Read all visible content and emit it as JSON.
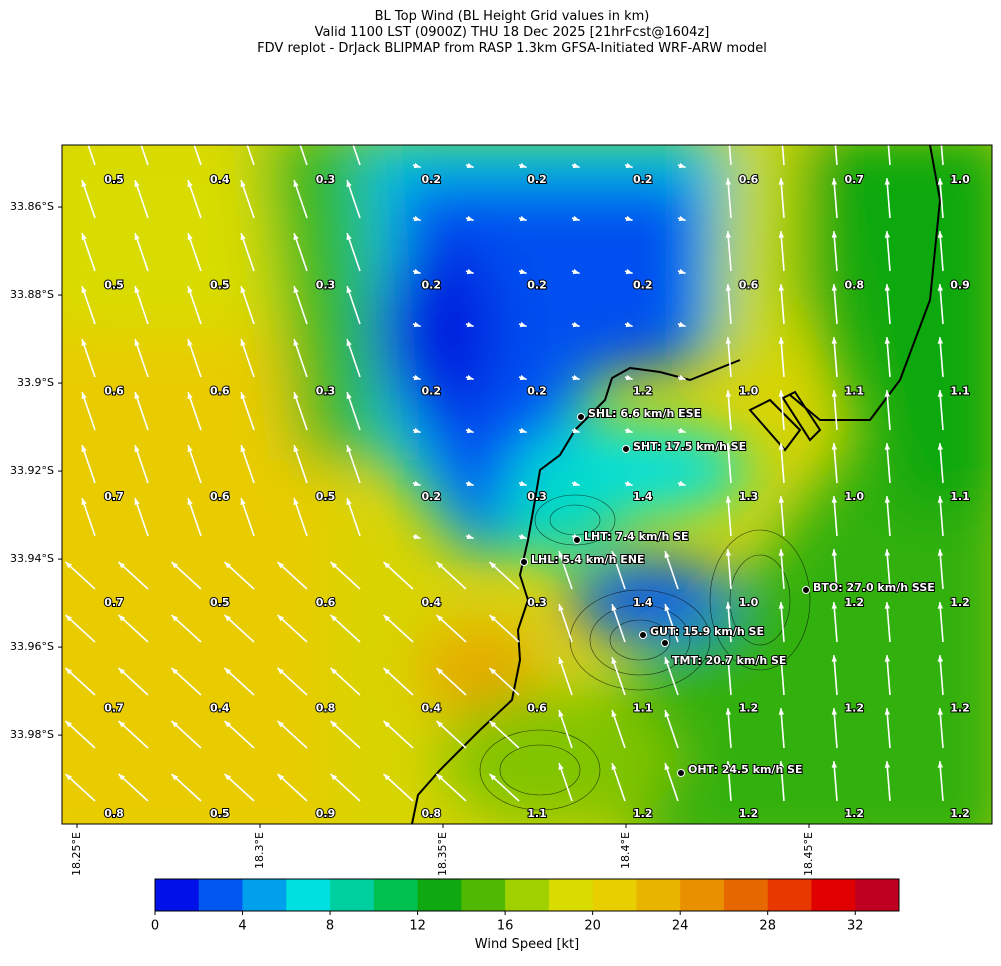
{
  "header": {
    "title": [
      "BL Top Wind (BL Height Grid values in km)",
      "Valid 1100 LST (0900Z) THU 18 Dec 2025 [21hrFcst@1604z]",
      "FDV replot - DrJack BLIPMAP from RASP 1.3km GFSA-Initiated WRF-ARW model"
    ]
  },
  "map": {
    "xlim": [
      18.2459,
      18.5
    ],
    "ylim": [
      -34.0002,
      -33.8459
    ],
    "lat_ticks": [
      {
        "value": -33.86,
        "label": "33.86°S"
      },
      {
        "value": -33.88,
        "label": "33.88°S"
      },
      {
        "value": -33.9,
        "label": "33.9°S"
      },
      {
        "value": -33.92,
        "label": "33.92°S"
      },
      {
        "value": -33.94,
        "label": "33.94°S"
      },
      {
        "value": -33.96,
        "label": "33.96°S"
      },
      {
        "value": -33.98,
        "label": "33.98°S"
      }
    ],
    "lon_ticks": [
      {
        "value": 18.25,
        "label": "18.25°E"
      },
      {
        "value": 18.3,
        "label": "18.3°E"
      },
      {
        "value": 18.35,
        "label": "18.35°E"
      },
      {
        "value": 18.4,
        "label": "18.4°E"
      },
      {
        "value": 18.45,
        "label": "18.45°E"
      }
    ],
    "grid_values": [
      [
        "0.5",
        "0.4",
        "0.3",
        "0.2",
        "0.2",
        "0.2",
        "0.6",
        "0.7",
        "1.0"
      ],
      [
        "0.5",
        "0.5",
        "0.3",
        "0.2",
        "0.2",
        "0.2",
        "0.6",
        "0.8",
        "0.9"
      ],
      [
        "0.6",
        "0.6",
        "0.3",
        "0.2",
        "0.2",
        "1.2",
        "1.0",
        "1.1",
        "1.1"
      ],
      [
        "0.7",
        "0.6",
        "0.5",
        "0.2",
        "0.3",
        "1.4",
        "1.3",
        "1.0",
        "1.1"
      ],
      [
        "0.7",
        "0.5",
        "0.6",
        "0.4",
        "0.3",
        "1.4",
        "1.0",
        "1.2",
        "1.2"
      ],
      [
        "0.7",
        "0.4",
        "0.8",
        "0.4",
        "0.6",
        "1.1",
        "1.2",
        "1.2",
        "1.2"
      ],
      [
        "0.8",
        "0.5",
        "0.9",
        "0.8",
        "1.1",
        "1.2",
        "1.2",
        "1.2",
        "1.2"
      ]
    ],
    "stations": [
      "SHL: 6.6 km/h ESE",
      "SHT: 17.5 km/h SE",
      "LHT: 7.4 km/h SE",
      "LHL: 5.4 km/h ENE",
      "BTO: 27.0 km/h SSE",
      "GUT: 15.9 km/h SE",
      "TMT: 20.7 km/h SE",
      "OHT: 24.5 km/h SE"
    ]
  },
  "colorbar": {
    "label": "Wind Speed [kt]",
    "range": [
      0,
      34
    ],
    "ticks": [
      0,
      4,
      8,
      12,
      16,
      20,
      24,
      28,
      32
    ],
    "colors": [
      "#0010e8",
      "#0058f0",
      "#00a0ec",
      "#00e0e0",
      "#00d0a0",
      "#00c050",
      "#10a810",
      "#50b800",
      "#a0d000",
      "#d8dc00",
      "#e8d000",
      "#e8b400",
      "#e89000",
      "#e86800",
      "#e83800",
      "#e00000",
      "#c00020"
    ]
  }
}
